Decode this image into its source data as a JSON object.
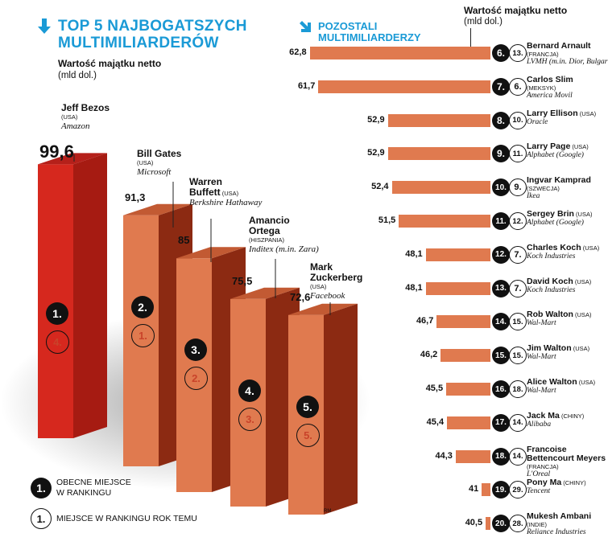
{
  "left": {
    "title_line1": "TOP 5 NAJBOGATSZYCH",
    "title_line2": "MULTIMILIARDERÓW",
    "unit_bold": "Wartość majątku netto",
    "unit_sub": "(mld dol.)"
  },
  "right": {
    "title_line1": "POZOSTALI",
    "title_line2": "MULTIMILIARDERZY",
    "unit_bold": "Wartość majątku netto",
    "unit_sub": "(mld dol.)"
  },
  "legend": {
    "current_label_1": "OBECNE MIEJSCE",
    "current_label_2": "W RANKINGU",
    "prev_label": "MIEJSCE W RANKINGU ROK TEMU"
  },
  "credit": "RM",
  "colors": {
    "accent": "#1a9ad6",
    "top_bar": "#d6281e",
    "bar": "#e07a4f",
    "bar_dark": "#8c2a12"
  },
  "chart_data": [
    {
      "type": "bar",
      "title": "TOP 5 NAJBOGATSZYCH MULTIMILIARDERÓW",
      "ylabel": "Wartość majątku netto (mld dol.)",
      "categories": [
        "Jeff Bezos",
        "Bill Gates",
        "Warren Buffett",
        "Amancio Ortega",
        "Mark Zuckerberg"
      ],
      "values": [
        99.6,
        91.3,
        85,
        75.5,
        72.6
      ],
      "value_labels": [
        "99,6",
        "91,3",
        "85",
        "75,5",
        "72,6"
      ],
      "countries": [
        "(USA)",
        "(USA)",
        "(USA)",
        "(HISZPANIA)",
        "(USA)"
      ],
      "companies": [
        "Amazon",
        "Microsoft",
        "Berkshire Hathaway",
        "Inditex (m.in. Zara)",
        "Facebook"
      ],
      "rank_now": [
        "1.",
        "2.",
        "3.",
        "4.",
        "5."
      ],
      "rank_prev": [
        "4.",
        "1.",
        "2.",
        "3.",
        "5."
      ],
      "name_lines": [
        [
          "Jeff Bezos"
        ],
        [
          "Bill Gates"
        ],
        [
          "Warren",
          "Buffett"
        ],
        [
          "Amancio",
          "Ortega"
        ],
        [
          "Mark",
          "Zuckerberg"
        ]
      ]
    },
    {
      "type": "bar",
      "title": "POZOSTALI MULTIMILIARDERZY",
      "xlabel": "Wartość majątku netto (mld dol.)",
      "rows": [
        {
          "name": "Bernard Arnault",
          "country": "(FRANCJA)",
          "company": "LVMH (m.in. Dior, Bulgari)",
          "value": 62.8,
          "label": "62,8",
          "rank": "6.",
          "prev": "13."
        },
        {
          "name": "Carlos Slim",
          "country": "(MEKSYK)",
          "company": "America Movil",
          "value": 61.7,
          "label": "61,7",
          "rank": "7.",
          "prev": "6."
        },
        {
          "name": "Larry Ellison",
          "country": "(USA)",
          "company": "Oracle",
          "value": 52.9,
          "label": "52,9",
          "rank": "8.",
          "prev": "10."
        },
        {
          "name": "Larry Page",
          "country": "(USA)",
          "company": "Alphabet (Google)",
          "value": 52.9,
          "label": "52,9",
          "rank": "9.",
          "prev": "11."
        },
        {
          "name": "Ingvar Kamprad",
          "country": "(SZWECJA)",
          "company": "Ikea",
          "value": 52.4,
          "label": "52,4",
          "rank": "10.",
          "prev": "9."
        },
        {
          "name": "Sergey Brin",
          "country": "(USA)",
          "company": "Alphabet (Google)",
          "value": 51.5,
          "label": "51,5",
          "rank": "11.",
          "prev": "12."
        },
        {
          "name": "Charles Koch",
          "country": "(USA)",
          "company": "Koch Industries",
          "value": 48.1,
          "label": "48,1",
          "rank": "12.",
          "prev": "7."
        },
        {
          "name": "David Koch",
          "country": "(USA)",
          "company": "Koch Industries",
          "value": 48.1,
          "label": "48,1",
          "rank": "13.",
          "prev": "7."
        },
        {
          "name": "Rob Walton",
          "country": "(USA)",
          "company": "Wal-Mart",
          "value": 46.7,
          "label": "46,7",
          "rank": "14.",
          "prev": "15."
        },
        {
          "name": "Jim Walton",
          "country": "(USA)",
          "company": "Wal-Mart",
          "value": 46.2,
          "label": "46,2",
          "rank": "15.",
          "prev": "15."
        },
        {
          "name": "Alice Walton",
          "country": "(USA)",
          "company": "Wal-Mart",
          "value": 45.5,
          "label": "45,5",
          "rank": "16.",
          "prev": "18."
        },
        {
          "name": "Jack Ma",
          "country": "(CHINY)",
          "company": "Alibaba",
          "value": 45.4,
          "label": "45,4",
          "rank": "17.",
          "prev": "14."
        },
        {
          "name": "Francoise Bettencourt Meyers",
          "country": "(FRANCJA)",
          "company": "L'Oreal",
          "value": 44.3,
          "label": "44,3",
          "rank": "18.",
          "prev": "14."
        },
        {
          "name": "Pony Ma",
          "country": "(CHINY)",
          "company": "Tencent",
          "value": 41,
          "label": "41",
          "rank": "19.",
          "prev": "29."
        },
        {
          "name": "Mukesh Ambani",
          "country": "(INDIE)",
          "company": "Reliance Industries",
          "value": 40.5,
          "label": "40,5",
          "rank": "20.",
          "prev": "28."
        }
      ]
    }
  ]
}
